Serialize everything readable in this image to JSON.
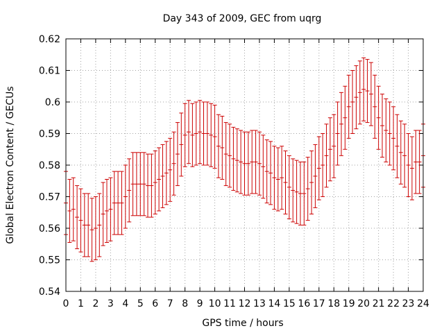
{
  "chart_data": {
    "type": "scatter",
    "title": "Day 343 of 2009, GEC from uqrg",
    "xlabel": "GPS time / hours",
    "ylabel": "Global Electron Content / GECUs",
    "xlim": [
      0,
      24
    ],
    "ylim": [
      0.54,
      0.62
    ],
    "xticks": [
      "0",
      "1",
      "2",
      "3",
      "4",
      "5",
      "6",
      "7",
      "8",
      "9",
      "10",
      "11",
      "12",
      "13",
      "14",
      "15",
      "16",
      "17",
      "18",
      "19",
      "20",
      "21",
      "22",
      "23",
      "24"
    ],
    "yticks": [
      "0.54",
      "0.55",
      "0.56",
      "0.57",
      "0.58",
      "0.59",
      "0.6",
      "0.61",
      "0.62"
    ],
    "grid": true,
    "error_half_width": 0.01,
    "series_color": "#cc0000",
    "series": [
      {
        "x": [
          0,
          0.25,
          0.5,
          0.75,
          1,
          1.25,
          1.5,
          1.75,
          2,
          2.25,
          2.5,
          2.75,
          3,
          3.25,
          3.5,
          3.75,
          4,
          4.25,
          4.5,
          4.75,
          5,
          5.25,
          5.5,
          5.75,
          6,
          6.25,
          6.5,
          6.75,
          7,
          7.25,
          7.5,
          7.75,
          8,
          8.25,
          8.5,
          8.75,
          9,
          9.25,
          9.5,
          9.75,
          10,
          10.25,
          10.5,
          10.75,
          11,
          11.25,
          11.5,
          11.75,
          12,
          12.25,
          12.5,
          12.75,
          13,
          13.25,
          13.5,
          13.75,
          14,
          14.25,
          14.5,
          14.75,
          15,
          15.25,
          15.5,
          15.75,
          16,
          16.25,
          16.5,
          16.75,
          17,
          17.25,
          17.5,
          17.75,
          18,
          18.25,
          18.5,
          18.75,
          19,
          19.25,
          19.5,
          19.75,
          20,
          20.25,
          20.5,
          20.75,
          21,
          21.25,
          21.5,
          21.75,
          22,
          22.25,
          22.5,
          22.75,
          23,
          23.25,
          23.5,
          23.75,
          24
        ],
        "y": [
          0.568,
          0.5655,
          0.566,
          0.5635,
          0.5625,
          0.561,
          0.561,
          0.5595,
          0.56,
          0.561,
          0.5645,
          0.5655,
          0.566,
          0.568,
          0.568,
          0.568,
          0.57,
          0.572,
          0.574,
          0.574,
          0.574,
          0.574,
          0.5735,
          0.5735,
          0.5745,
          0.5755,
          0.5765,
          0.5775,
          0.5785,
          0.5805,
          0.5835,
          0.5865,
          0.5895,
          0.5905,
          0.5895,
          0.59,
          0.5905,
          0.59,
          0.59,
          0.5895,
          0.589,
          0.586,
          0.5855,
          0.5835,
          0.583,
          0.582,
          0.5815,
          0.581,
          0.5805,
          0.5805,
          0.581,
          0.581,
          0.5805,
          0.5795,
          0.578,
          0.5775,
          0.576,
          0.5755,
          0.576,
          0.5745,
          0.573,
          0.572,
          0.5715,
          0.571,
          0.571,
          0.5725,
          0.5745,
          0.5765,
          0.579,
          0.58,
          0.583,
          0.585,
          0.586,
          0.59,
          0.593,
          0.595,
          0.5985,
          0.6,
          0.6015,
          0.603,
          0.604,
          0.6035,
          0.6025,
          0.5985,
          0.595,
          0.5925,
          0.591,
          0.59,
          0.5885,
          0.586,
          0.584,
          0.583,
          0.58,
          0.579,
          0.581,
          0.581,
          0.583
        ]
      }
    ]
  }
}
